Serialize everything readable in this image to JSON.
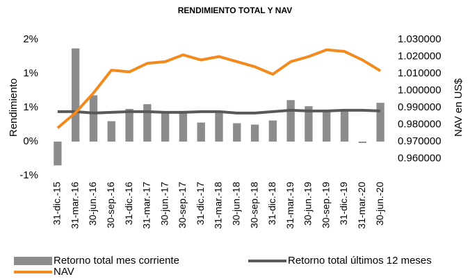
{
  "chart_data": {
    "type": "combo",
    "title": "RENDIMIENTO TOTAL Y NAV",
    "y_label": "Rendimiento",
    "y2_label": "NAV en US$",
    "categories": [
      "31-dic.-15",
      "31-mar.-16",
      "30-jun.-16",
      "30-sep.-16",
      "31-dic.-16",
      "31-mar.-17",
      "30-jun.-17",
      "30-sep.-17",
      "31-dic.-17",
      "31-mar.-18",
      "30-jun.-18",
      "30-sep.-18",
      "31-dic.-18",
      "31-mar.-19",
      "30-jun.-19",
      "30-sep.-19",
      "31-dic.-19",
      "31-mar.-20",
      "30-jun.-20"
    ],
    "ylim": [
      -0.5,
      1.5
    ],
    "yticks": [
      {
        "value": -0.5,
        "label": "-1%"
      },
      {
        "value": 0,
        "label": "0%"
      },
      {
        "value": 0.5,
        "label": "1%"
      },
      {
        "value": 1,
        "label": "1%"
      },
      {
        "value": 1.5,
        "label": "2%"
      }
    ],
    "y2lim": [
      0.95,
      1.03
    ],
    "y2ticks": [
      {
        "value": 0.96,
        "label": "0.960000"
      },
      {
        "value": 0.97,
        "label": "0.970000"
      },
      {
        "value": 0.98,
        "label": "0.980000"
      },
      {
        "value": 0.99,
        "label": "0.990000"
      },
      {
        "value": 1.0,
        "label": "1.000000"
      },
      {
        "value": 1.01,
        "label": "1.010000"
      },
      {
        "value": 1.02,
        "label": "1.020000"
      },
      {
        "value": 1.03,
        "label": "1.030000"
      }
    ],
    "grid": false,
    "series": [
      {
        "name": "Retorno total mes corriente",
        "type": "bar",
        "axis": "y",
        "color": "#8c8c8c",
        "values": [
          -0.35,
          1.37,
          0.68,
          0.3,
          0.48,
          0.55,
          0.42,
          0.45,
          0.28,
          0.45,
          0.27,
          0.25,
          0.31,
          0.61,
          0.52,
          0.45,
          0.48,
          -0.02,
          0.57
        ]
      },
      {
        "name": "Retorno total últimos 12 meses",
        "type": "line",
        "axis": "y",
        "color": "#595959",
        "values": [
          0.44,
          0.44,
          0.42,
          0.43,
          0.44,
          0.44,
          0.43,
          0.43,
          0.44,
          0.44,
          0.42,
          0.42,
          0.44,
          0.46,
          0.45,
          0.45,
          0.46,
          0.46,
          0.45
        ]
      },
      {
        "name": "NAV",
        "type": "line",
        "axis": "y2",
        "color": "#f28a1e",
        "values": [
          0.978,
          0.987,
          0.9986,
          1.012,
          1.011,
          1.016,
          1.017,
          1.021,
          1.018,
          1.02,
          1.017,
          1.014,
          1.0096,
          1.017,
          1.02,
          1.024,
          1.023,
          1.018,
          1.0116
        ]
      }
    ]
  }
}
